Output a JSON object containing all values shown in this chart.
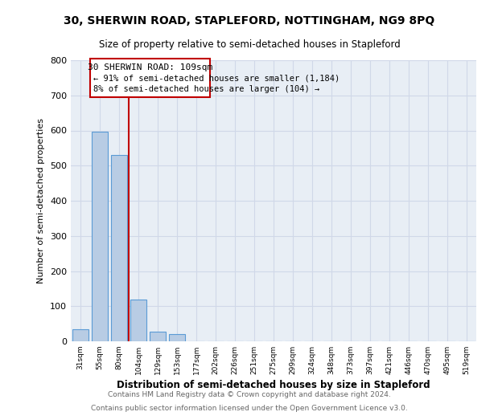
{
  "title1": "30, SHERWIN ROAD, STAPLEFORD, NOTTINGHAM, NG9 8PQ",
  "title2": "Size of property relative to semi-detached houses in Stapleford",
  "xlabel": "Distribution of semi-detached houses by size in Stapleford",
  "ylabel": "Number of semi-detached properties",
  "categories": [
    "31sqm",
    "55sqm",
    "80sqm",
    "104sqm",
    "129sqm",
    "153sqm",
    "177sqm",
    "202sqm",
    "226sqm",
    "251sqm",
    "275sqm",
    "299sqm",
    "324sqm",
    "348sqm",
    "373sqm",
    "397sqm",
    "421sqm",
    "446sqm",
    "470sqm",
    "495sqm",
    "519sqm"
  ],
  "values": [
    35,
    597,
    530,
    118,
    27,
    20,
    0,
    0,
    0,
    0,
    0,
    0,
    0,
    0,
    0,
    0,
    0,
    0,
    0,
    0,
    0
  ],
  "bar_color": "#b8cce4",
  "bar_edge_color": "#5b9bd5",
  "property_label": "30 SHERWIN ROAD: 109sqm",
  "annotation_line1": "← 91% of semi-detached houses are smaller (1,184)",
  "annotation_line2": "8% of semi-detached houses are larger (104) →",
  "vline_color": "#c00000",
  "annotation_box_color": "#c00000",
  "ylim": [
    0,
    800
  ],
  "yticks": [
    0,
    100,
    200,
    300,
    400,
    500,
    600,
    700,
    800
  ],
  "grid_color": "#d0d8e8",
  "bg_color": "#e8eef5",
  "footer1": "Contains HM Land Registry data © Crown copyright and database right 2024.",
  "footer2": "Contains public sector information licensed under the Open Government Licence v3.0."
}
